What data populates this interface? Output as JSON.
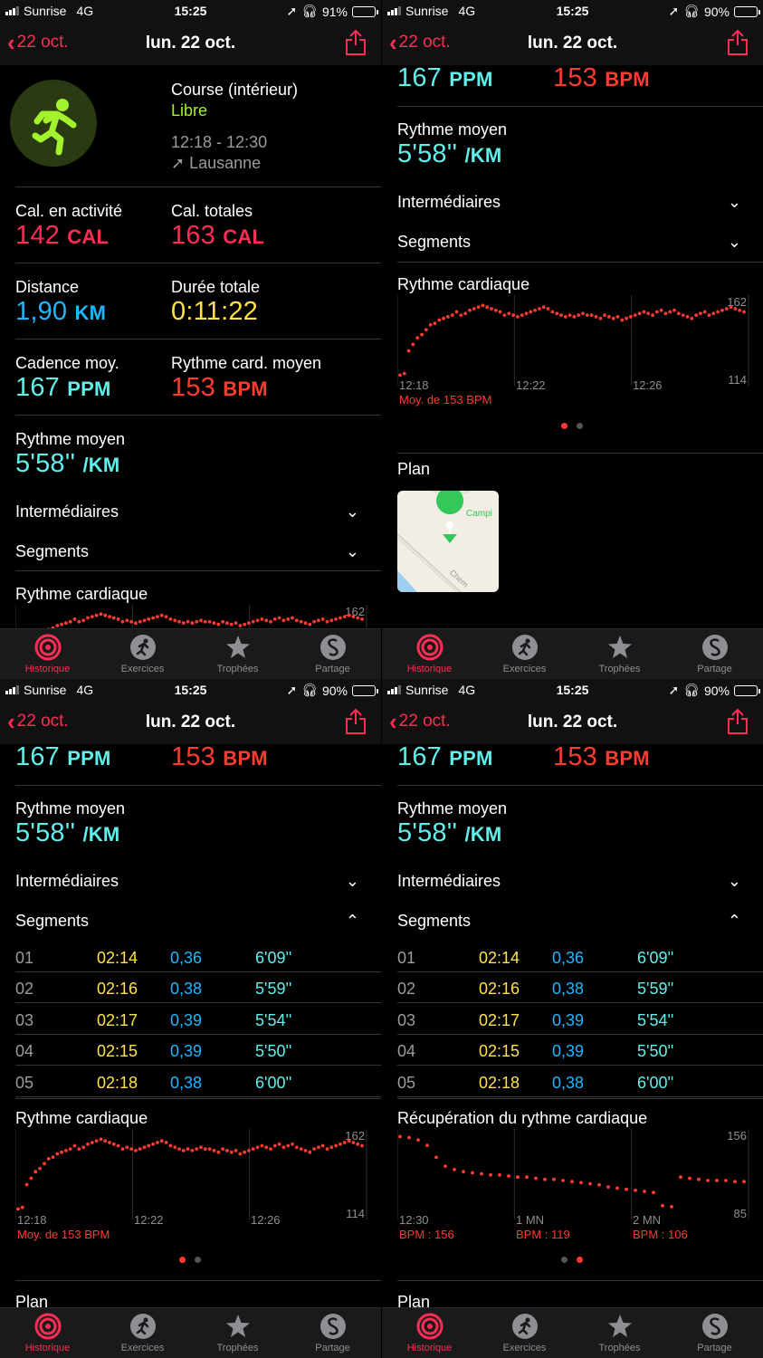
{
  "status": {
    "carrier": "Sunrise",
    "network": "4G",
    "time": "15:25",
    "battery_panel1": "91%",
    "battery_other": "90%",
    "battery_level_panel1": 0.91,
    "battery_level_other": 0.9
  },
  "nav": {
    "back_label": "22 oct.",
    "title": "lun. 22 oct."
  },
  "workout": {
    "type": "Course (intérieur)",
    "goal": "Libre",
    "time_range": "12:18 - 12:30",
    "location": "Lausanne"
  },
  "stats": {
    "active_cal_label": "Cal. en activité",
    "active_cal_value": "142",
    "active_cal_unit": "CAL",
    "total_cal_label": "Cal. totales",
    "total_cal_value": "163",
    "total_cal_unit": "CAL",
    "distance_label": "Distance",
    "distance_value": "1,90",
    "distance_unit": "KM",
    "duration_label": "Durée totale",
    "duration_value": "0:11:22",
    "cadence_label": "Cadence moy.",
    "cadence_value": "167",
    "cadence_unit": "PPM",
    "hr_label": "Rythme card. moyen",
    "hr_value": "153",
    "hr_unit": "BPM",
    "pace_label": "Rythme moyen",
    "pace_value": "5'58''",
    "pace_unit": "/KM"
  },
  "sections": {
    "splits": "Intermédiaires",
    "segments": "Segments",
    "heart_rate": "Rythme cardiaque",
    "recovery": "Récupération du rythme cardiaque",
    "map": "Plan",
    "map_place": "Campi",
    "map_street": "Chem"
  },
  "segments": [
    {
      "n": "01",
      "time": "02:14",
      "dist": "0,36",
      "pace": "6'09''"
    },
    {
      "n": "02",
      "time": "02:16",
      "dist": "0,38",
      "pace": "5'59''"
    },
    {
      "n": "03",
      "time": "02:17",
      "dist": "0,39",
      "pace": "5'54''"
    },
    {
      "n": "04",
      "time": "02:15",
      "dist": "0,39",
      "pace": "5'50''"
    },
    {
      "n": "05",
      "time": "02:18",
      "dist": "0,38",
      "pace": "6'00''"
    }
  ],
  "chart_data": [
    {
      "type": "scatter",
      "title": "Rythme cardiaque",
      "ylim": [
        114,
        162
      ],
      "y_ticks": [
        "162",
        "114"
      ],
      "x_ticks": [
        "12:18",
        "12:22",
        "12:26"
      ],
      "footer": "Moy. de 153 BPM",
      "grid": true,
      "values": [
        116,
        117,
        131,
        135,
        139,
        141,
        144,
        147,
        148,
        150,
        151,
        152,
        153,
        155,
        153,
        154,
        156,
        157,
        158,
        159,
        158,
        157,
        156,
        155,
        153,
        154,
        153,
        152,
        153,
        154,
        155,
        156,
        157,
        158,
        157,
        155,
        154,
        153,
        152,
        153,
        152,
        153,
        154,
        153,
        153,
        152,
        151,
        153,
        152,
        151,
        152,
        150,
        151,
        152,
        153,
        154,
        155,
        154,
        153,
        155,
        156,
        154,
        155,
        156,
        154,
        153,
        152,
        151,
        153,
        154,
        155,
        153,
        154,
        155,
        156,
        157,
        158,
        157,
        156,
        155
      ]
    },
    {
      "type": "scatter",
      "title": "Récupération du rythme cardiaque",
      "ylim": [
        85,
        156
      ],
      "y_ticks": [
        "156",
        "85"
      ],
      "x_ticks": [
        "12:30",
        "1 MN",
        "2 MN"
      ],
      "footer_labels": [
        "BPM : 156",
        "BPM : 119",
        "BPM : 106"
      ],
      "grid": true,
      "values": [
        154,
        153,
        151,
        146,
        135,
        127,
        124,
        122,
        121,
        120,
        119,
        119,
        118,
        117,
        117,
        116,
        115,
        115,
        114,
        113,
        112,
        111,
        110,
        108,
        107,
        106,
        105,
        104,
        103,
        91,
        90,
        117,
        116,
        115,
        114,
        114,
        114,
        113,
        113
      ]
    }
  ],
  "tabs": [
    "Historique",
    "Exercices",
    "Trophées",
    "Partage"
  ],
  "colors": {
    "accent": "#ff2d55",
    "heart": "#ff3b30",
    "cyan": "#5ff0ec",
    "blue": "#1fb6ff",
    "yellow": "#ffe14a",
    "green": "#a4f22d"
  }
}
